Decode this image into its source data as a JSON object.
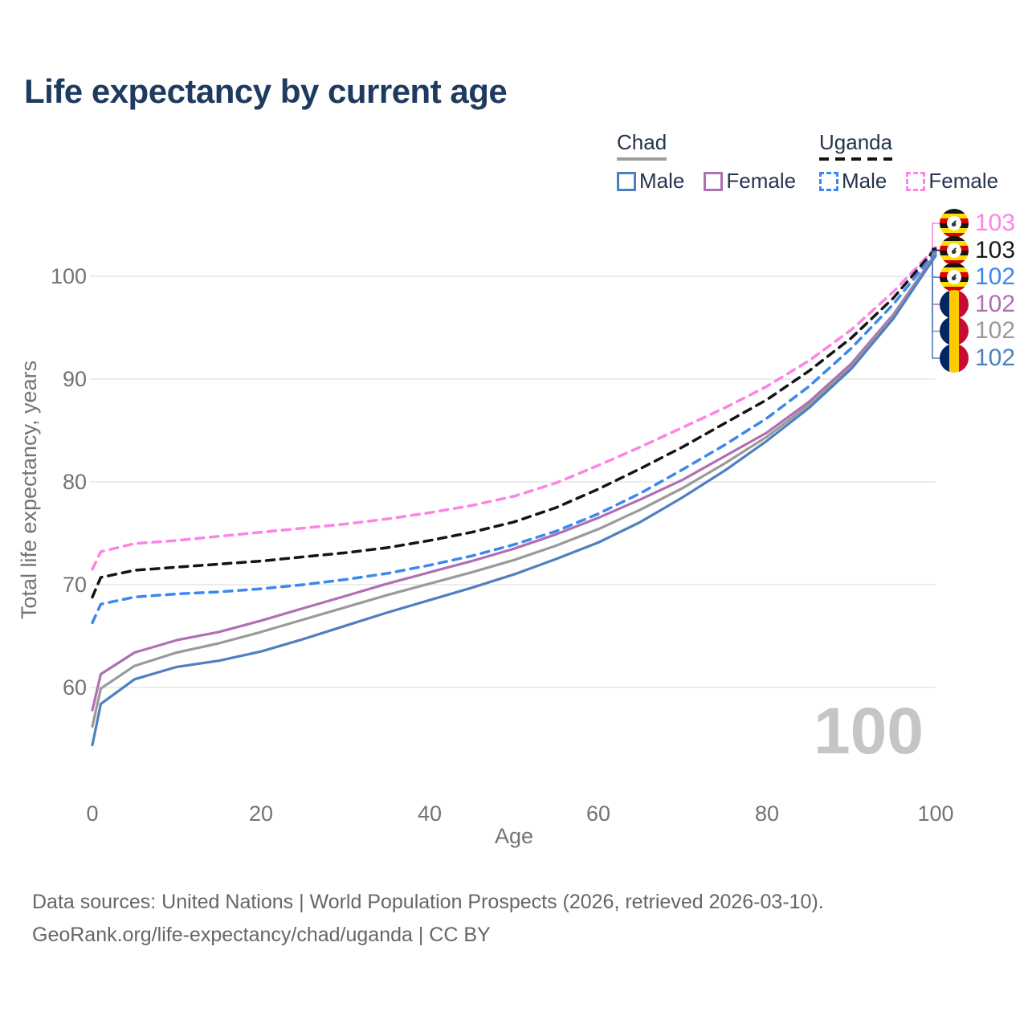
{
  "title": "Life expectancy by current age",
  "legend": {
    "groups": [
      {
        "label": "Chad",
        "underline_style": "solid",
        "underline_color": "#9e9e9e",
        "items": [
          {
            "label": "Male",
            "color": "#4e7fc0",
            "dashed": false
          },
          {
            "label": "Female",
            "color": "#b06fb2",
            "dashed": false
          }
        ]
      },
      {
        "label": "Uganda",
        "underline_style": "dashed",
        "underline_color": "#141414",
        "items": [
          {
            "label": "Male",
            "color": "#3d87f0",
            "dashed": true
          },
          {
            "label": "Female",
            "color": "#fb84e4",
            "dashed": true
          }
        ]
      }
    ]
  },
  "chart_data": {
    "type": "line",
    "title": "Life expectancy by current age",
    "xlabel": "Age",
    "ylabel": "Total life expectancy, years",
    "xticks": [
      0,
      20,
      40,
      60,
      80,
      100
    ],
    "yticks": [
      60,
      70,
      80,
      90,
      100
    ],
    "xlim": [
      0,
      100
    ],
    "ylim": [
      54,
      104
    ],
    "grid": "horizontal",
    "x": [
      0,
      1,
      5,
      10,
      15,
      20,
      25,
      30,
      35,
      40,
      45,
      50,
      55,
      60,
      65,
      70,
      75,
      80,
      85,
      90,
      95,
      100
    ],
    "series": [
      {
        "name": "Uganda Female",
        "country": "Uganda",
        "sex": "Female",
        "color": "#fb84e4",
        "dashed": true,
        "values": [
          71.5,
          73.2,
          74.0,
          74.3,
          74.7,
          75.1,
          75.5,
          75.9,
          76.4,
          77.0,
          77.7,
          78.6,
          79.9,
          81.6,
          83.4,
          85.3,
          87.2,
          89.3,
          91.8,
          94.8,
          98.5,
          102.8
        ],
        "end_label": "103"
      },
      {
        "name": "Uganda Both sexes",
        "country": "Uganda",
        "sex": "Both",
        "color": "#141414",
        "dashed": true,
        "values": [
          68.8,
          70.7,
          71.4,
          71.7,
          72.0,
          72.3,
          72.7,
          73.1,
          73.6,
          74.3,
          75.1,
          76.1,
          77.5,
          79.3,
          81.3,
          83.4,
          85.7,
          88.0,
          90.8,
          94.0,
          97.9,
          102.7
        ],
        "end_label": "103"
      },
      {
        "name": "Uganda Male",
        "country": "Uganda",
        "sex": "Male",
        "color": "#3d87f0",
        "dashed": true,
        "values": [
          66.3,
          68.1,
          68.8,
          69.1,
          69.3,
          69.6,
          70.0,
          70.5,
          71.1,
          71.9,
          72.8,
          73.9,
          75.2,
          76.9,
          78.9,
          81.2,
          83.6,
          86.2,
          89.3,
          93.0,
          97.3,
          102.4
        ],
        "end_label": "102"
      },
      {
        "name": "Chad Female",
        "country": "Chad",
        "sex": "Female",
        "color": "#b06fb2",
        "dashed": false,
        "values": [
          57.8,
          61.3,
          63.4,
          64.6,
          65.4,
          66.5,
          67.7,
          68.9,
          70.1,
          71.2,
          72.3,
          73.5,
          74.9,
          76.5,
          78.3,
          80.2,
          82.5,
          84.8,
          87.8,
          91.5,
          96.3,
          102.2
        ],
        "end_label": "102"
      },
      {
        "name": "Chad Both sexes",
        "country": "Chad",
        "sex": "Both",
        "color": "#9a9a9a",
        "dashed": false,
        "values": [
          56.2,
          59.9,
          62.1,
          63.4,
          64.3,
          65.4,
          66.6,
          67.8,
          69.0,
          70.1,
          71.2,
          72.4,
          73.8,
          75.4,
          77.3,
          79.4,
          81.8,
          84.4,
          87.5,
          91.2,
          96.1,
          102.1
        ],
        "end_label": "102"
      },
      {
        "name": "Chad Male",
        "country": "Chad",
        "sex": "Male",
        "color": "#4e7fc0",
        "dashed": false,
        "values": [
          54.4,
          58.4,
          60.8,
          62.0,
          62.6,
          63.5,
          64.7,
          66.0,
          67.3,
          68.5,
          69.7,
          71.0,
          72.5,
          74.1,
          76.1,
          78.5,
          81.1,
          84.0,
          87.2,
          91.0,
          95.9,
          102.0
        ],
        "end_label": "102"
      }
    ],
    "legend_position": "top-right"
  },
  "end_labels": [
    {
      "flag": "uganda",
      "value": "103",
      "color": "#fb84e4"
    },
    {
      "flag": "uganda",
      "value": "103",
      "color": "#1a1a1a"
    },
    {
      "flag": "uganda",
      "value": "102",
      "color": "#3d87f0"
    },
    {
      "flag": "chad",
      "value": "102",
      "color": "#b06fb2"
    },
    {
      "flag": "chad",
      "value": "102",
      "color": "#9a9a9a"
    },
    {
      "flag": "chad",
      "value": "102",
      "color": "#4e7fc0"
    }
  ],
  "watermark": "100",
  "footer": {
    "line1": "Data sources: United Nations | World Population Prospects (2026, retrieved 2026-03-10).",
    "line2": "GeoRank.org/life-expectancy/chad/uganda | CC BY"
  },
  "colors": {
    "title": "#1e3a5f",
    "axis_text": "#737373",
    "gridline": "#ececec",
    "watermark": "#c5c5c5",
    "footer_text": "#666666"
  }
}
